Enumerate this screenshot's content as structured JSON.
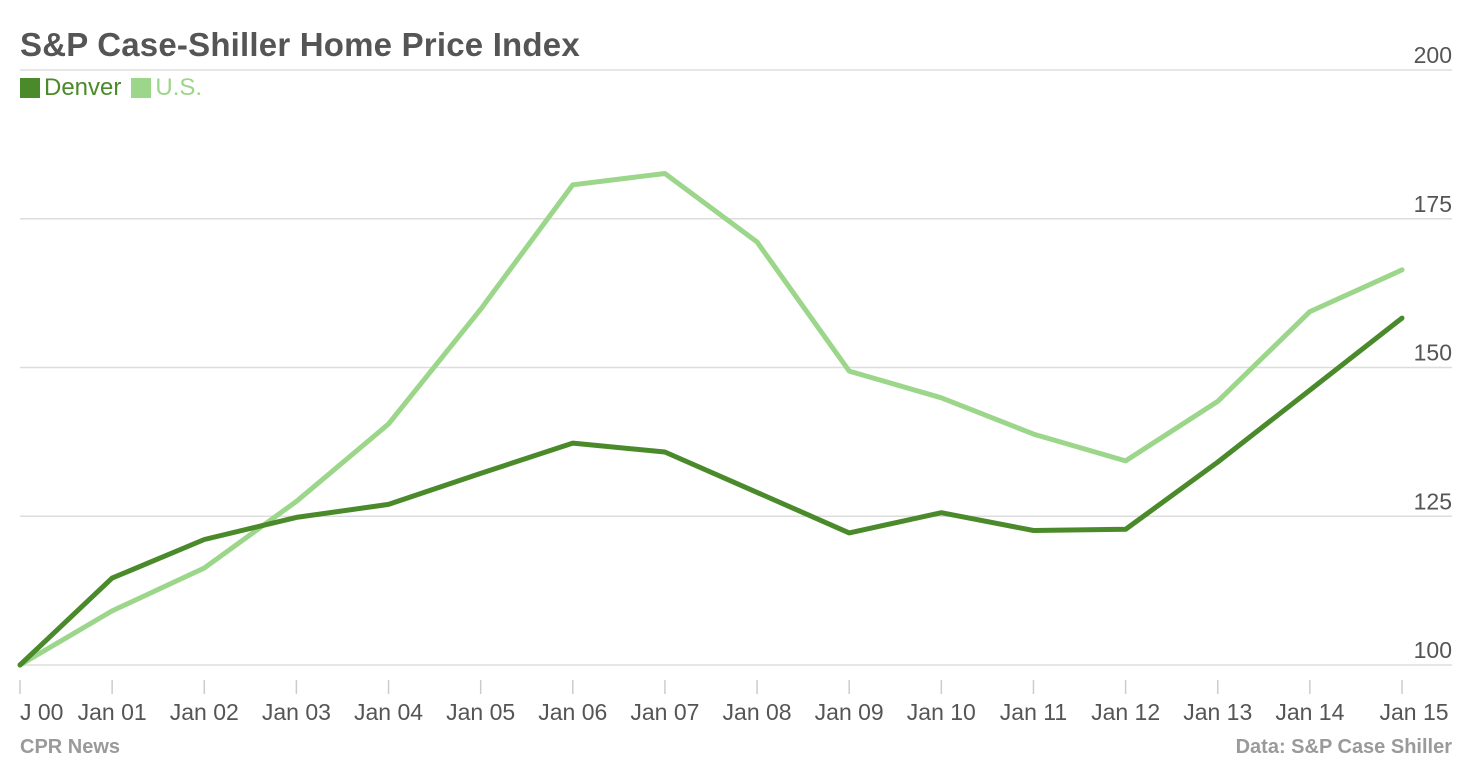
{
  "chart_data": {
    "type": "line",
    "title": "S&P Case-Shiller Home Price Index",
    "categories": [
      "J 00",
      "Jan 01",
      "Jan 02",
      "Jan 03",
      "Jan 04",
      "Jan 05",
      "Jan 06",
      "Jan 07",
      "Jan 08",
      "Jan 09",
      "Jan 10",
      "Jan 11",
      "Jan 12",
      "Jan 13",
      "Jan 14",
      "Jan 15"
    ],
    "series": [
      {
        "name": "Denver",
        "color": "#4a8a2a",
        "values": [
          100,
          114.6,
          121.1,
          124.8,
          127.0,
          132.2,
          137.3,
          135.8,
          129.0,
          122.2,
          125.6,
          122.6,
          122.8,
          134.1,
          146.2,
          158.3
        ]
      },
      {
        "name": "U.S.",
        "color": "#9cd68a",
        "values": [
          100,
          109.1,
          116.3,
          127.5,
          140.5,
          159.8,
          180.7,
          182.6,
          171.1,
          149.4,
          144.9,
          138.8,
          134.3,
          144.3,
          159.4,
          166.4
        ]
      }
    ],
    "yticks": [
      100,
      125,
      150,
      175,
      200
    ],
    "ylim": [
      100,
      200
    ],
    "xlabel": "",
    "ylabel": "",
    "grid": true,
    "legend_position": "top-left",
    "y_axis_side": "right"
  },
  "footer": {
    "left": "CPR News",
    "right": "Data: S&P Case Shiller"
  }
}
